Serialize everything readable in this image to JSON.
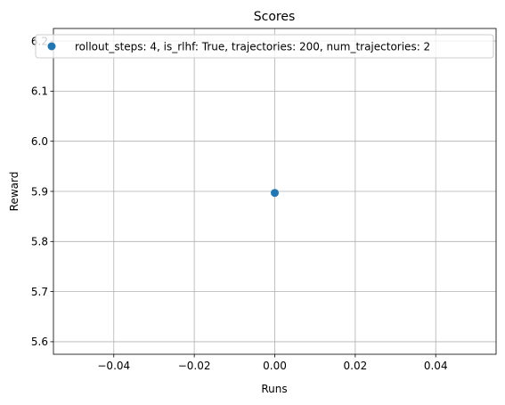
{
  "chart_data": {
    "type": "scatter",
    "title": "Scores",
    "xlabel": "Runs",
    "ylabel": "Reward",
    "xlim": [
      -0.055,
      0.055
    ],
    "ylim": [
      5.575,
      6.225
    ],
    "xticks": [
      -0.04,
      -0.02,
      0.0,
      0.02,
      0.04
    ],
    "xtick_labels": [
      "−0.04",
      "−0.02",
      "0.00",
      "0.02",
      "0.04"
    ],
    "yticks": [
      5.6,
      5.7,
      5.8,
      5.9,
      6.0,
      6.1,
      6.2
    ],
    "ytick_labels": [
      "5.6",
      "5.7",
      "5.8",
      "5.9",
      "6.0",
      "6.1",
      "6.2"
    ],
    "grid": true,
    "legend_position": "top",
    "series": [
      {
        "name": "rollout_steps: 4, is_rlhf: True, trajectories: 200, num_trajectories: 2",
        "color": "#1f77b4",
        "x": [
          0.0
        ],
        "y": [
          5.897
        ]
      }
    ]
  }
}
